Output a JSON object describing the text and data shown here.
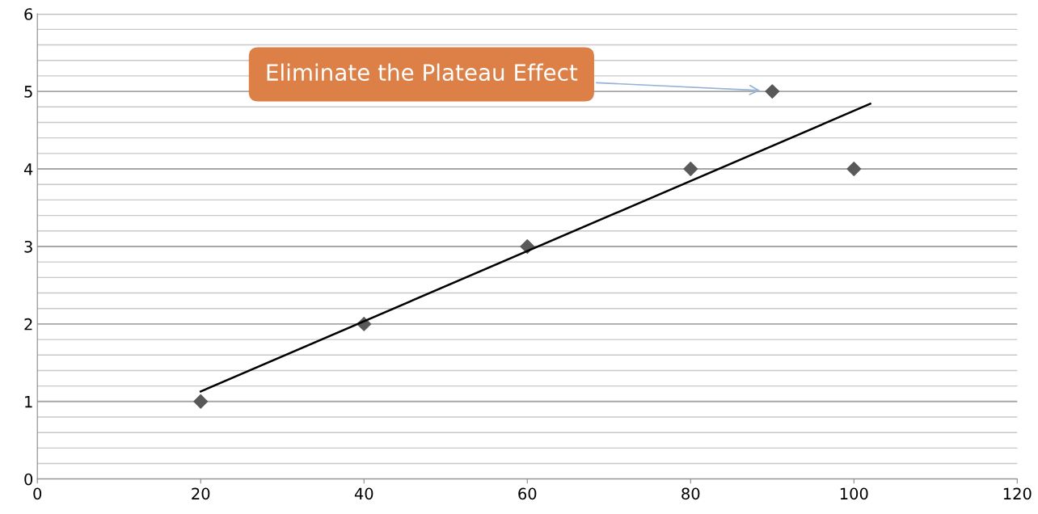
{
  "chart_data": {
    "type": "scatter",
    "xlim": [
      0,
      120
    ],
    "xticks": [
      0,
      20,
      40,
      60,
      80,
      100,
      120
    ],
    "ylim": [
      0,
      6
    ],
    "yticks": [
      0,
      {
        "value": 0.2,
        "label": null
      },
      {
        "value": 0.4,
        "label": null
      },
      {
        "value": 0.6,
        "label": null
      },
      {
        "value": 0.8,
        "label": null
      },
      1,
      {
        "value": 1.2,
        "label": null
      },
      {
        "value": 1.4,
        "label": null
      },
      {
        "value": 1.6,
        "label": null
      },
      {
        "value": 1.8,
        "label": null
      },
      2,
      {
        "value": 2.2,
        "label": null
      },
      {
        "value": 2.4,
        "label": null
      },
      {
        "value": 2.6,
        "label": null
      },
      {
        "value": 2.8,
        "label": null
      },
      3,
      {
        "value": 3.2,
        "label": null
      },
      {
        "value": 3.4,
        "label": null
      },
      {
        "value": 3.6,
        "label": null
      },
      {
        "value": 3.8,
        "label": null
      },
      4,
      {
        "value": 4.2,
        "label": null
      },
      {
        "value": 4.4,
        "label": null
      },
      {
        "value": 4.6,
        "label": null
      },
      {
        "value": 4.8,
        "label": null
      },
      5,
      {
        "value": 5.2,
        "label": null
      },
      {
        "value": 5.4,
        "label": null
      },
      {
        "value": 5.6,
        "label": null
      },
      {
        "value": 5.8,
        "label": null
      },
      6
    ],
    "grid": "y",
    "series": [
      {
        "marker": "diamond",
        "color": "#595959",
        "x": [
          20,
          40,
          60,
          80,
          90,
          100
        ],
        "values": [
          1,
          2,
          3,
          4,
          5,
          4
        ]
      },
      {
        "type": "line",
        "marker": "none",
        "color": "#000000",
        "x": [
          20,
          102
        ],
        "values": [
          1.13,
          4.84
        ]
      }
    ],
    "annotations": [
      "Eliminate the Plateau Effect"
    ]
  }
}
